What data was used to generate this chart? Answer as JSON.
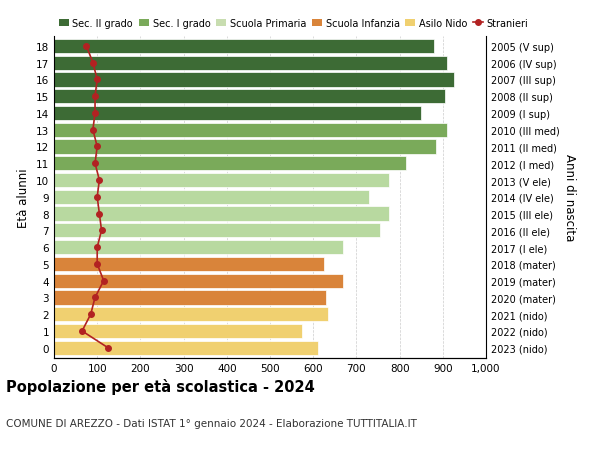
{
  "ages": [
    18,
    17,
    16,
    15,
    14,
    13,
    12,
    11,
    10,
    9,
    8,
    7,
    6,
    5,
    4,
    3,
    2,
    1,
    0
  ],
  "right_labels": [
    "2005 (V sup)",
    "2006 (IV sup)",
    "2007 (III sup)",
    "2008 (II sup)",
    "2009 (I sup)",
    "2010 (III med)",
    "2011 (II med)",
    "2012 (I med)",
    "2013 (V ele)",
    "2014 (IV ele)",
    "2015 (III ele)",
    "2016 (II ele)",
    "2017 (I ele)",
    "2018 (mater)",
    "2019 (mater)",
    "2020 (mater)",
    "2021 (nido)",
    "2022 (nido)",
    "2023 (nido)"
  ],
  "bar_values": [
    880,
    910,
    925,
    905,
    850,
    910,
    885,
    815,
    775,
    730,
    775,
    755,
    670,
    625,
    670,
    630,
    635,
    575,
    610
  ],
  "stranieri_values": [
    75,
    90,
    100,
    95,
    95,
    90,
    100,
    95,
    105,
    100,
    105,
    110,
    100,
    100,
    115,
    95,
    85,
    65,
    125
  ],
  "bar_colors": [
    "#3d6b35",
    "#3d6b35",
    "#3d6b35",
    "#3d6b35",
    "#3d6b35",
    "#7aaa5a",
    "#7aaa5a",
    "#7aaa5a",
    "#b8d9a0",
    "#b8d9a0",
    "#b8d9a0",
    "#b8d9a0",
    "#b8d9a0",
    "#d9843a",
    "#d9843a",
    "#d9843a",
    "#f0d070",
    "#f0d070",
    "#f0d070"
  ],
  "legend_labels": [
    "Sec. II grado",
    "Sec. I grado",
    "Scuola Primaria",
    "Scuola Infanzia",
    "Asilo Nido",
    "Stranieri"
  ],
  "legend_colors": [
    "#3d6b35",
    "#7aaa5a",
    "#c8ddb0",
    "#d9843a",
    "#f0d070",
    "#b22222"
  ],
  "title": "Popolazione per età scolastica - 2024",
  "subtitle": "COMUNE DI AREZZO - Dati ISTAT 1° gennaio 2024 - Elaborazione TUTTITALIA.IT",
  "ylabel": "Età alunni",
  "right_ylabel": "Anni di nascita",
  "xlim": [
    0,
    1000
  ],
  "xticks": [
    0,
    100,
    200,
    300,
    400,
    500,
    600,
    700,
    800,
    900,
    1000
  ],
  "xtick_labels": [
    "0",
    "100",
    "200",
    "300",
    "400",
    "500",
    "600",
    "700",
    "800",
    "900",
    "1,000"
  ],
  "bar_height": 0.85,
  "stranieri_line_color": "#b22222",
  "background_color": "#ffffff",
  "plot_bg_color": "#ffffff",
  "grid_color": "#cccccc"
}
